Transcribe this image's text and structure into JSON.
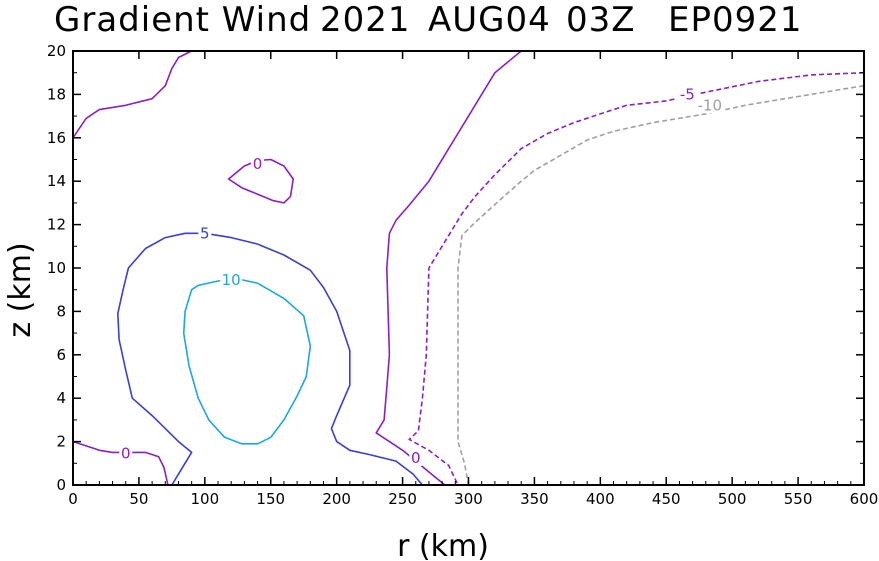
{
  "chart_data": {
    "type": "contour",
    "title_parts": [
      "Gradient Wind",
      "2021",
      "AUG04",
      "03Z",
      "EP0921"
    ],
    "xlabel": "r (km)",
    "ylabel": "z (km)",
    "xlim": [
      0,
      600
    ],
    "ylim": [
      0,
      20
    ],
    "xticks": [
      0,
      50,
      100,
      150,
      200,
      250,
      300,
      350,
      400,
      450,
      500,
      550,
      600
    ],
    "yticks": [
      0,
      2,
      4,
      6,
      8,
      10,
      12,
      14,
      16,
      18,
      20
    ],
    "grid": false,
    "contours": [
      {
        "level": 0,
        "label": "0",
        "color": "#8a1fc9",
        "dashed": false,
        "points": [
          [
            0,
            16
          ],
          [
            10,
            16.9
          ],
          [
            20,
            17.3
          ],
          [
            40,
            17.5
          ],
          [
            60,
            17.8
          ],
          [
            70,
            18.4
          ],
          [
            75,
            19.2
          ],
          [
            80,
            19.7
          ],
          [
            90,
            20
          ]
        ],
        "label_at": null
      },
      {
        "level": 0,
        "label": "0",
        "color": "#8a1fc9",
        "dashed": false,
        "closed": true,
        "points": [
          [
            118,
            14.1
          ],
          [
            130,
            14.7
          ],
          [
            140,
            14.95
          ],
          [
            150,
            15
          ],
          [
            160,
            14.7
          ],
          [
            167,
            14.1
          ],
          [
            165,
            13.3
          ],
          [
            160,
            13
          ],
          [
            152,
            13.1
          ],
          [
            140,
            13.4
          ],
          [
            128,
            13.7
          ],
          [
            118,
            14.1
          ]
        ],
        "label_at": [
          140,
          14.8
        ]
      },
      {
        "level": 0,
        "label": "0",
        "color": "#8a1fc9",
        "dashed": false,
        "points": [
          [
            0,
            2
          ],
          [
            10,
            1.8
          ],
          [
            20,
            1.6
          ],
          [
            30,
            1.5
          ],
          [
            40,
            1.5
          ],
          [
            55,
            1.5
          ],
          [
            65,
            1.3
          ],
          [
            69,
            0.8
          ],
          [
            72,
            0
          ]
        ],
        "label_at": [
          40,
          1.45
        ]
      },
      {
        "level": 0,
        "label": "0",
        "color": "#8a1fc9",
        "dashed": false,
        "points": [
          [
            340,
            20
          ],
          [
            320,
            19
          ],
          [
            300,
            17
          ],
          [
            285,
            15.5
          ],
          [
            270,
            14
          ],
          [
            255,
            12.9
          ],
          [
            245,
            12.2
          ],
          [
            240,
            11.6
          ],
          [
            238,
            10
          ],
          [
            239,
            8
          ],
          [
            240,
            6
          ],
          [
            238,
            4.5
          ],
          [
            236,
            3
          ],
          [
            230,
            2.4
          ],
          [
            240,
            2
          ],
          [
            250,
            1.6
          ],
          [
            260,
            1.1
          ],
          [
            270,
            0.6
          ],
          [
            282,
            0
          ]
        ],
        "label_at": [
          260,
          1.25
        ]
      },
      {
        "level": -5,
        "label": "-5",
        "color": "#8a1fc9",
        "dashed": true,
        "points": [
          [
            600,
            19
          ],
          [
            560,
            18.9
          ],
          [
            520,
            18.6
          ],
          [
            480,
            18.1
          ],
          [
            450,
            17.7
          ],
          [
            420,
            17.5
          ],
          [
            400,
            17.1
          ],
          [
            380,
            16.7
          ],
          [
            360,
            16.2
          ],
          [
            340,
            15.5
          ],
          [
            330,
            14.9
          ],
          [
            320,
            14.3
          ],
          [
            305,
            13.3
          ],
          [
            295,
            12.5
          ],
          [
            290,
            12
          ],
          [
            275,
            10.5
          ],
          [
            270,
            10
          ],
          [
            269,
            8
          ],
          [
            268,
            6
          ],
          [
            265,
            4
          ],
          [
            262,
            2.5
          ],
          [
            255,
            2.1
          ],
          [
            270,
            1.6
          ],
          [
            285,
            0.9
          ],
          [
            292,
            0
          ]
        ],
        "label_at": [
          466,
          18
        ]
      },
      {
        "level": -10,
        "label": "-10",
        "color": "#a0a0a0",
        "dashed": true,
        "points": [
          [
            600,
            18.4
          ],
          [
            570,
            18.1
          ],
          [
            540,
            17.8
          ],
          [
            510,
            17.5
          ],
          [
            480,
            17.1
          ],
          [
            440,
            16.7
          ],
          [
            410,
            16.3
          ],
          [
            390,
            15.9
          ],
          [
            370,
            15.2
          ],
          [
            350,
            14.5
          ],
          [
            340,
            14
          ],
          [
            325,
            13.2
          ],
          [
            305,
            12.1
          ],
          [
            295,
            11.5
          ],
          [
            292,
            10
          ],
          [
            292,
            8
          ],
          [
            292,
            6
          ],
          [
            292,
            4
          ],
          [
            292,
            2
          ],
          [
            297,
            1
          ],
          [
            300,
            0
          ]
        ],
        "label_at": [
          483,
          17.5
        ]
      },
      {
        "level": 5,
        "label": "5",
        "color": "#3a3fd7",
        "dashed": false,
        "points": [
          [
            75,
            0
          ],
          [
            80,
            0.5
          ],
          [
            90,
            1.5
          ],
          [
            80,
            2
          ],
          [
            60,
            3.2
          ],
          [
            45,
            4
          ],
          [
            40,
            5.3
          ],
          [
            35,
            6.7
          ],
          [
            34,
            7.9
          ],
          [
            38,
            9
          ],
          [
            42,
            10
          ],
          [
            55,
            10.9
          ],
          [
            70,
            11.4
          ],
          [
            85,
            11.6
          ],
          [
            100,
            11.6
          ],
          [
            120,
            11.4
          ],
          [
            140,
            11.1
          ],
          [
            160,
            10.6
          ],
          [
            180,
            9.9
          ],
          [
            190,
            9.1
          ],
          [
            200,
            8
          ],
          [
            210,
            6.2
          ],
          [
            210,
            4.6
          ],
          [
            200,
            3.2
          ],
          [
            196,
            2.6
          ],
          [
            200,
            2.0
          ],
          [
            210,
            1.6
          ],
          [
            225,
            1.4
          ],
          [
            245,
            1.1
          ],
          [
            258,
            0.5
          ],
          [
            265,
            0
          ]
        ],
        "label_at": [
          100,
          11.6
        ]
      },
      {
        "level": 10,
        "label": "10",
        "color": "#1aa7e6",
        "dashed": false,
        "closed": true,
        "points": [
          [
            85,
            8
          ],
          [
            90,
            9
          ],
          [
            95,
            9.2
          ],
          [
            110,
            9.4
          ],
          [
            125,
            9.5
          ],
          [
            140,
            9.3
          ],
          [
            160,
            8.6
          ],
          [
            175,
            7.8
          ],
          [
            180,
            6.4
          ],
          [
            177,
            5
          ],
          [
            170,
            4.1
          ],
          [
            160,
            3
          ],
          [
            150,
            2.2
          ],
          [
            140,
            1.9
          ],
          [
            128,
            1.9
          ],
          [
            115,
            2.2
          ],
          [
            103,
            3
          ],
          [
            95,
            4
          ],
          [
            88,
            5.5
          ],
          [
            84,
            7
          ],
          [
            85,
            8
          ]
        ],
        "label_at": [
          120,
          9.45
        ]
      }
    ]
  }
}
